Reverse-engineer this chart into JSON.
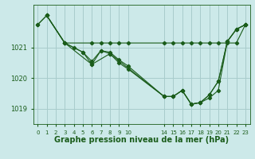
{
  "background_color": "#cce9e9",
  "plot_bg_color": "#cce9e9",
  "line_color": "#1a5c1a",
  "grid_color": "#b0d4d4",
  "xlabel": "Graphe pression niveau de la mer (hPa)",
  "xlabel_fontsize": 7,
  "xlabel_color": "#1a5c1a",
  "ylim": [
    1018.5,
    1022.4
  ],
  "yticks": [
    1019,
    1020,
    1021
  ],
  "xticks_left": [
    0,
    1,
    2,
    3,
    4,
    5,
    6,
    7,
    8,
    9,
    10
  ],
  "xticks_right": [
    14,
    15,
    16,
    17,
    18,
    19,
    20,
    21,
    22,
    23
  ],
  "series1_x": [
    0,
    1,
    3,
    6,
    7,
    8,
    9,
    10,
    14,
    15,
    16,
    17,
    18,
    19,
    20,
    21,
    22,
    23
  ],
  "series1_y": [
    1021.75,
    1022.05,
    1021.15,
    1021.15,
    1021.15,
    1021.15,
    1021.15,
    1021.15,
    1021.15,
    1021.15,
    1021.15,
    1021.15,
    1021.15,
    1021.15,
    1021.15,
    1021.15,
    1021.15,
    1021.75
  ],
  "series2_x": [
    0,
    1,
    3,
    4,
    5,
    6,
    7,
    8,
    9,
    10,
    14,
    15,
    16,
    17,
    18,
    19,
    20,
    21,
    22,
    23
  ],
  "series2_y": [
    1021.75,
    1022.05,
    1021.15,
    1021.0,
    1020.85,
    1020.55,
    1020.9,
    1020.8,
    1020.5,
    1020.3,
    1019.4,
    1019.4,
    1019.6,
    1019.15,
    1019.2,
    1019.45,
    1019.9,
    1021.2,
    1021.6,
    1021.75
  ],
  "series3_x": [
    1,
    3,
    5,
    6,
    7,
    8,
    9,
    10,
    14,
    15,
    16,
    17,
    18,
    19,
    20,
    21,
    22,
    23
  ],
  "series3_y": [
    1022.05,
    1021.15,
    1020.85,
    1020.45,
    1020.9,
    1020.85,
    1020.6,
    1020.4,
    1019.4,
    1019.4,
    1019.6,
    1019.15,
    1019.2,
    1019.35,
    1019.6,
    1021.2,
    1021.6,
    1021.75
  ],
  "series4_x": [
    1,
    3,
    6,
    8,
    14,
    15,
    16,
    17,
    18,
    19,
    20,
    21,
    22,
    23
  ],
  "series4_y": [
    1022.05,
    1021.15,
    1020.45,
    1020.8,
    1019.4,
    1019.4,
    1019.6,
    1019.15,
    1019.2,
    1019.45,
    1019.9,
    1021.2,
    1021.6,
    1021.75
  ]
}
